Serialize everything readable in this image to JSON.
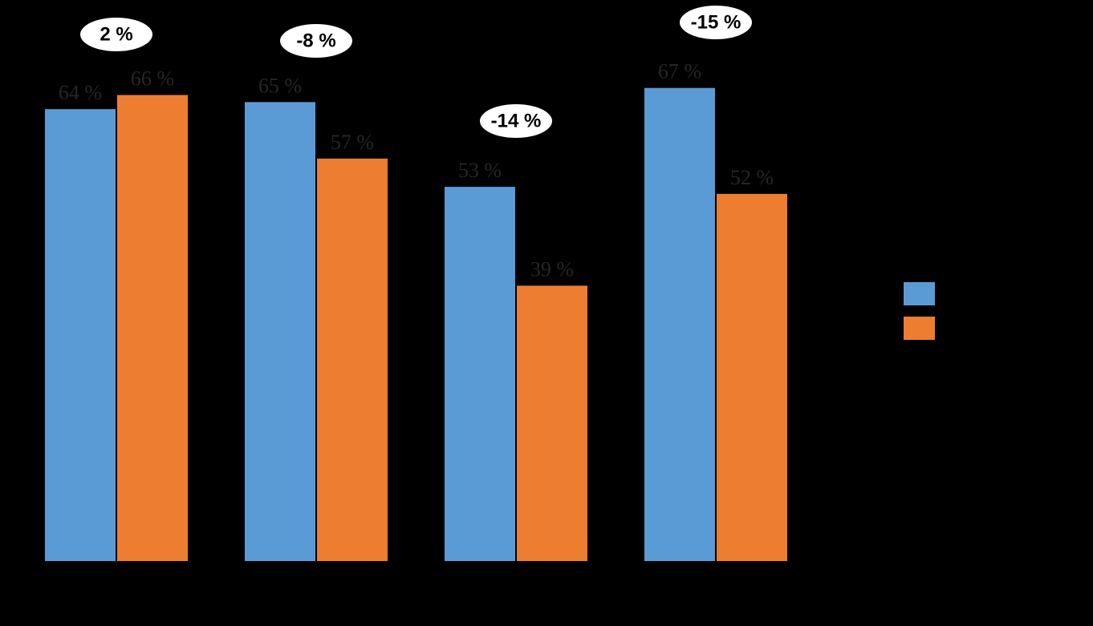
{
  "chart_data": {
    "type": "bar",
    "categories": [
      null,
      null,
      null,
      null
    ],
    "series": [
      {
        "color": "#5b9bd5",
        "values": [
          64,
          65,
          53,
          67
        ],
        "value_labels": [
          "64 %",
          "65 %",
          "53 %",
          "67 %"
        ]
      },
      {
        "color": "#ed7d31",
        "values": [
          66,
          57,
          39,
          52
        ],
        "value_labels": [
          "66 %",
          "57 %",
          "39 %",
          "52 %"
        ]
      }
    ],
    "annotations": [
      "2 %",
      "-8 %",
      "-14 %",
      "-15 %"
    ],
    "grid": false
  }
}
